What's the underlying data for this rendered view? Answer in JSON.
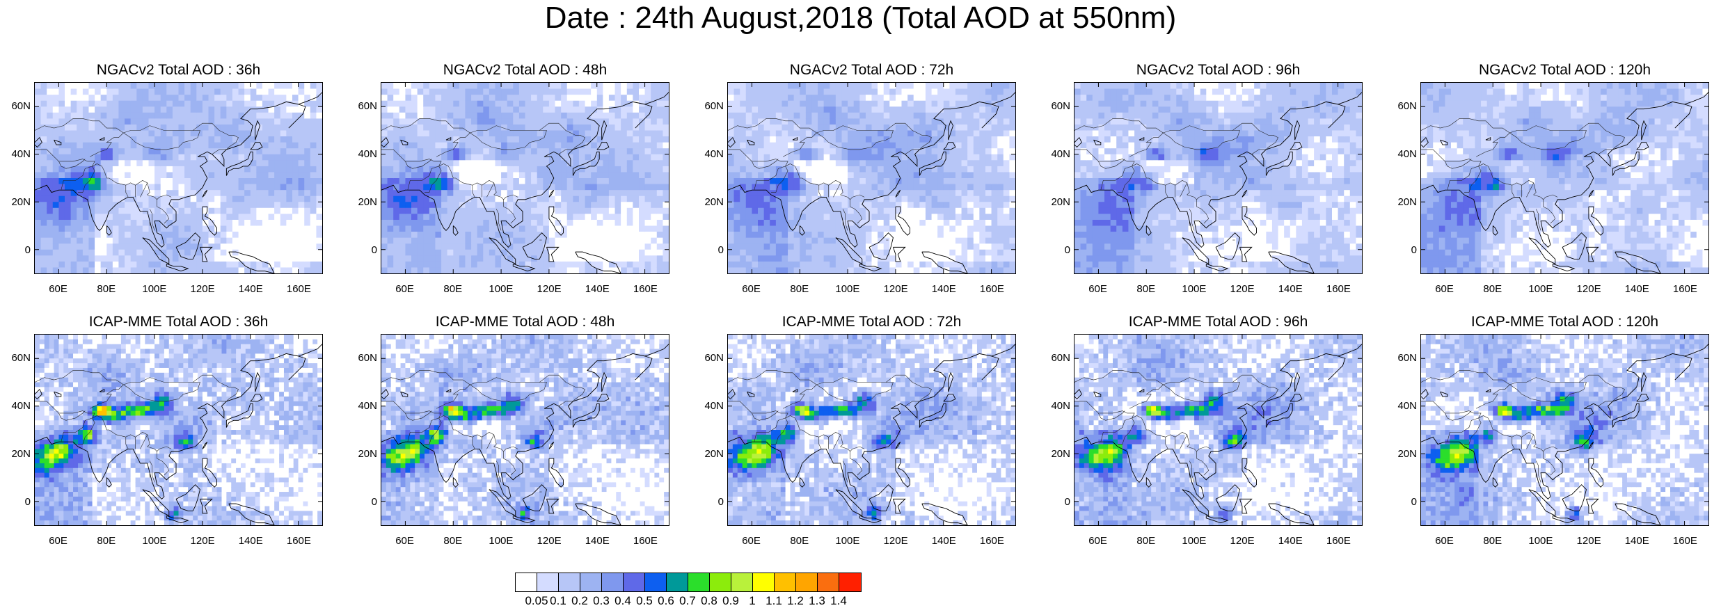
{
  "title": "Date : 24th August,2018 (Total AOD at 550nm)",
  "map_common": {
    "lat_ticks": [
      "60N",
      "40N",
      "20N",
      "0"
    ],
    "lon_ticks": [
      "60E",
      "80E",
      "100E",
      "120E",
      "140E",
      "160E"
    ],
    "region": "Asia, 50E–170E, 10S–70N"
  },
  "panels": [
    {
      "title": "NGACv2 Total AOD : 36h",
      "model": "NGACv2",
      "lead": "36h"
    },
    {
      "title": "NGACv2 Total AOD : 48h",
      "model": "NGACv2",
      "lead": "48h"
    },
    {
      "title": "NGACv2 Total AOD : 72h",
      "model": "NGACv2",
      "lead": "72h"
    },
    {
      "title": "NGACv2 Total AOD : 96h",
      "model": "NGACv2",
      "lead": "96h"
    },
    {
      "title": "NGACv2 Total AOD : 120h",
      "model": "NGACv2",
      "lead": "120h"
    },
    {
      "title": "ICAP-MME Total AOD : 36h",
      "model": "ICAP-MME",
      "lead": "36h"
    },
    {
      "title": "ICAP-MME Total AOD : 48h",
      "model": "ICAP-MME",
      "lead": "48h"
    },
    {
      "title": "ICAP-MME Total AOD : 72h",
      "model": "ICAP-MME",
      "lead": "72h"
    },
    {
      "title": "ICAP-MME Total AOD : 96h",
      "model": "ICAP-MME",
      "lead": "96h"
    },
    {
      "title": "ICAP-MME Total AOD : 120h",
      "model": "ICAP-MME",
      "lead": "120h"
    }
  ],
  "colorbar": {
    "labels": [
      "0.05",
      "0.1",
      "0.2",
      "0.3",
      "0.4",
      "0.5",
      "0.6",
      "0.7",
      "0.8",
      "0.9",
      "1",
      "1.1",
      "1.2",
      "1.3",
      "1.4"
    ],
    "colors": [
      "#ffffff",
      "#d4dcff",
      "#b7c6f7",
      "#9db3f2",
      "#7f98ee",
      "#5f69e8",
      "#0d5ff0",
      "#009999",
      "#2bde2b",
      "#8cec0c",
      "#b9f13b",
      "#ffff00",
      "#ffc000",
      "#ffa500",
      "#fa6e0f",
      "#ff2000"
    ]
  }
}
